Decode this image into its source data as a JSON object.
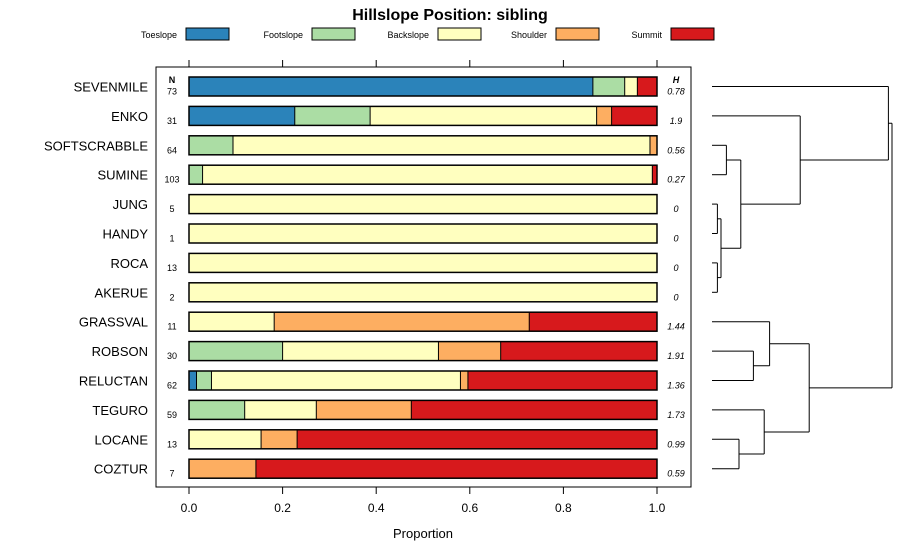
{
  "chart_data": {
    "type": "bar",
    "orientation": "horizontal",
    "stacked": true,
    "title": "Hillslope Position: sibling",
    "xlabel": "Proportion",
    "xlim": [
      0,
      1
    ],
    "xticks": [
      "0.0",
      "0.2",
      "0.4",
      "0.6",
      "0.8",
      "1.0"
    ],
    "n_header": "N",
    "h_header": "H",
    "legend_position": "top",
    "series": [
      {
        "name": "Toeslope",
        "color": "#2b83ba"
      },
      {
        "name": "Footslope",
        "color": "#abdda4"
      },
      {
        "name": "Backslope",
        "color": "#ffffbf"
      },
      {
        "name": "Shoulder",
        "color": "#fdae61"
      },
      {
        "name": "Summit",
        "color": "#d7191c"
      }
    ],
    "categories": [
      "SEVENMILE",
      "ENKO",
      "SOFTSCRABBLE",
      "SUMINE",
      "JUNG",
      "HANDY",
      "ROCA",
      "AKERUE",
      "GRASSVAL",
      "ROBSON",
      "RELUCTAN",
      "TEGURO",
      "LOCANE",
      "COZTUR"
    ],
    "n": [
      "73",
      "31",
      "64",
      "103",
      "5",
      "1",
      "13",
      "2",
      "11",
      "30",
      "62",
      "59",
      "13",
      "7"
    ],
    "h": [
      "0.78",
      "1.9",
      "0.56",
      "0.27",
      "0",
      "0",
      "0",
      "0",
      "1.44",
      "1.91",
      "1.36",
      "1.73",
      "0.99",
      "0.59"
    ],
    "values": [
      [
        0.863,
        0.068,
        0.027,
        0.0,
        0.042
      ],
      [
        0.226,
        0.161,
        0.484,
        0.032,
        0.097
      ],
      [
        0.0,
        0.094,
        0.891,
        0.015,
        0.0
      ],
      [
        0.0,
        0.029,
        0.961,
        0.0,
        0.01
      ],
      [
        0.0,
        0.0,
        1.0,
        0.0,
        0.0
      ],
      [
        0.0,
        0.0,
        1.0,
        0.0,
        0.0
      ],
      [
        0.0,
        0.0,
        1.0,
        0.0,
        0.0
      ],
      [
        0.0,
        0.0,
        1.0,
        0.0,
        0.0
      ],
      [
        0.0,
        0.0,
        0.182,
        0.545,
        0.273
      ],
      [
        0.0,
        0.2,
        0.333,
        0.133,
        0.334
      ],
      [
        0.016,
        0.032,
        0.532,
        0.016,
        0.404
      ],
      [
        0.0,
        0.119,
        0.153,
        0.203,
        0.525
      ],
      [
        0.0,
        0.0,
        0.154,
        0.077,
        0.769
      ],
      [
        0.0,
        0.0,
        0.0,
        0.143,
        0.857
      ]
    ],
    "dendrogram": {
      "note": "hierarchical clustering of profiles; merge heights in relative units (0 = leaf)",
      "merges": [
        {
          "a": "L4",
          "b": "L5",
          "height": 0.03,
          "id": "JH"
        },
        {
          "a": "L6",
          "b": "L7",
          "height": 0.03,
          "id": "RA"
        },
        {
          "a": "JH",
          "b": "RA",
          "height": 0.05,
          "id": "JHRA"
        },
        {
          "a": "L2",
          "b": "L3",
          "height": 0.08,
          "id": "SS"
        },
        {
          "a": "SS",
          "b": "JHRA",
          "height": 0.16,
          "id": "SSJ"
        },
        {
          "a": "L1",
          "b": "SSJ",
          "height": 0.49,
          "id": "ESSJ"
        },
        {
          "a": "L0",
          "b": "ESSJ",
          "height": 0.98,
          "id": "TOPA"
        },
        {
          "a": "L9",
          "b": "L10",
          "height": 0.23,
          "id": "RR"
        },
        {
          "a": "L8",
          "b": "RR",
          "height": 0.32,
          "id": "GRR"
        },
        {
          "a": "L12",
          "b": "L13",
          "height": 0.15,
          "id": "LC"
        },
        {
          "a": "L11",
          "b": "LC",
          "height": 0.29,
          "id": "TLC"
        },
        {
          "a": "GRR",
          "b": "TLC",
          "height": 0.54,
          "id": "TOPB"
        },
        {
          "a": "TOPA",
          "b": "TOPB",
          "height": 1.0,
          "id": "ROOT"
        }
      ]
    }
  }
}
